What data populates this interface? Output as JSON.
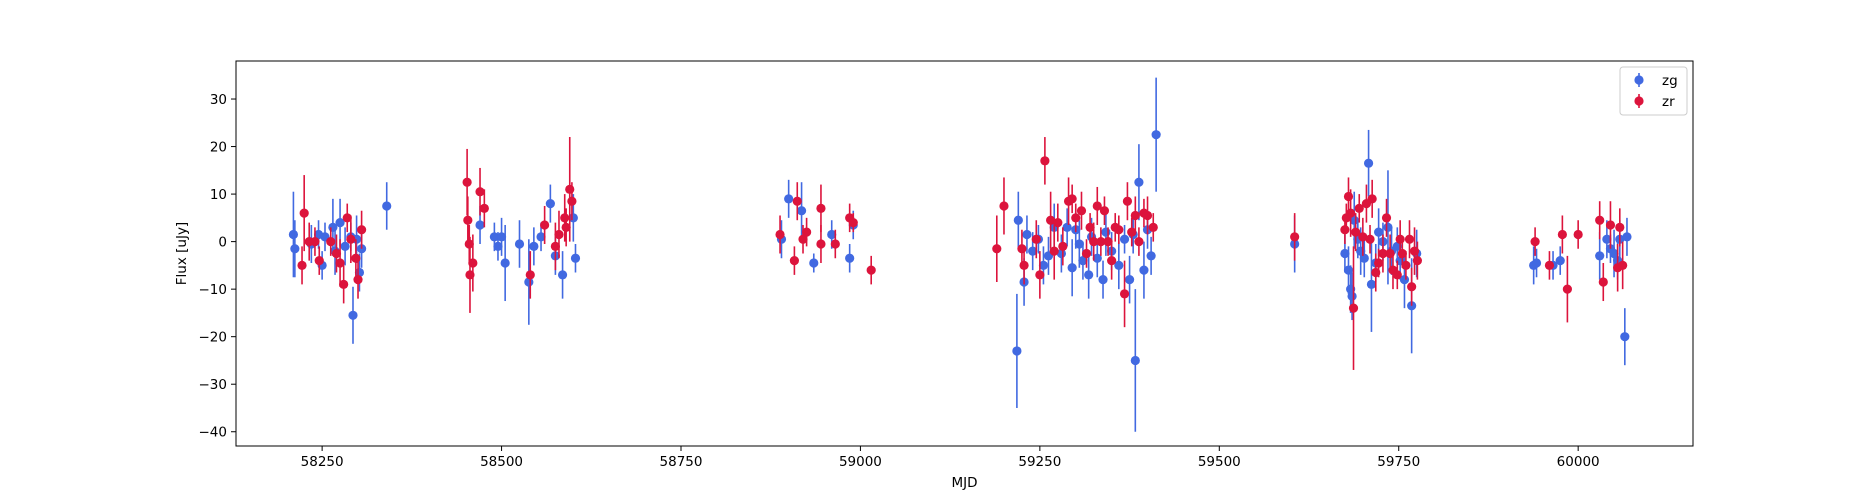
{
  "chart_data": {
    "type": "scatter",
    "title": "",
    "xlabel": "MJD",
    "ylabel": "Flux [uJy]",
    "xlim": [
      58130,
      60160
    ],
    "ylim": [
      -43,
      38
    ],
    "xticks": [
      58250,
      58500,
      58750,
      59000,
      59250,
      59500,
      59750,
      60000
    ],
    "yticks": [
      -40,
      -30,
      -20,
      -10,
      0,
      10,
      20,
      30
    ],
    "grid": false,
    "legend": "top-right",
    "series": [
      {
        "name": "zg",
        "color": "#4169e1",
        "points": [
          [
            58210,
            1.5,
            9
          ],
          [
            58212,
            -1.5,
            6
          ],
          [
            58235,
            -0.5,
            4
          ],
          [
            58245,
            1.5,
            3
          ],
          [
            58250,
            -5,
            3
          ],
          [
            58254,
            1,
            3
          ],
          [
            58265,
            3,
            6
          ],
          [
            58268,
            -2,
            5
          ],
          [
            58275,
            4,
            5
          ],
          [
            58282,
            -1,
            4
          ],
          [
            58290,
            1,
            3
          ],
          [
            58293,
            -15.5,
            6
          ],
          [
            58298,
            0.5,
            5
          ],
          [
            58302,
            -6.5,
            4
          ],
          [
            58305,
            -1.5,
            4
          ],
          [
            58340,
            7.5,
            5
          ],
          [
            58470,
            3.5,
            4
          ],
          [
            58490,
            1,
            3
          ],
          [
            58495,
            -1,
            3
          ],
          [
            58500,
            1,
            4
          ],
          [
            58505,
            -4.5,
            8
          ],
          [
            58525,
            -0.5,
            5
          ],
          [
            58538,
            -8.5,
            9
          ],
          [
            58545,
            -1,
            4
          ],
          [
            58555,
            1,
            3
          ],
          [
            58568,
            8,
            4
          ],
          [
            58575,
            -3,
            4
          ],
          [
            58585,
            -7,
            5
          ],
          [
            58600,
            5,
            5
          ],
          [
            58603,
            -3.5,
            3
          ],
          [
            58890,
            0.5,
            4
          ],
          [
            58900,
            9,
            4
          ],
          [
            58918,
            6.5,
            6
          ],
          [
            58935,
            -4.5,
            2
          ],
          [
            58960,
            1.5,
            3
          ],
          [
            58985,
            -3.5,
            3
          ],
          [
            58990,
            3.5,
            3
          ],
          [
            59218,
            -23,
            12
          ],
          [
            59220,
            4.5,
            6
          ],
          [
            59228,
            -8.5,
            5
          ],
          [
            59232,
            1.5,
            4
          ],
          [
            59240,
            -2,
            4
          ],
          [
            59248,
            0.5,
            3
          ],
          [
            59255,
            -5,
            4
          ],
          [
            59262,
            -3,
            4
          ],
          [
            59270,
            3,
            5
          ],
          [
            59280,
            -2.5,
            4
          ],
          [
            59288,
            3,
            4
          ],
          [
            59295,
            -5.5,
            6
          ],
          [
            59300,
            2.5,
            4
          ],
          [
            59305,
            -0.5,
            5
          ],
          [
            59310,
            -4,
            4
          ],
          [
            59318,
            -7,
            5
          ],
          [
            59322,
            1,
            4
          ],
          [
            59330,
            -3.5,
            4
          ],
          [
            59338,
            -8,
            4
          ],
          [
            59342,
            2,
            5
          ],
          [
            59350,
            -2,
            4
          ],
          [
            59360,
            -5,
            5
          ],
          [
            59368,
            0.5,
            3
          ],
          [
            59375,
            -8,
            5
          ],
          [
            59380,
            1.5,
            4
          ],
          [
            59383,
            -25,
            15
          ],
          [
            59388,
            12.5,
            8
          ],
          [
            59395,
            -6,
            6
          ],
          [
            59400,
            2.5,
            4
          ],
          [
            59405,
            -3,
            4
          ],
          [
            59412,
            22.5,
            12
          ],
          [
            59605,
            -0.5,
            6
          ],
          [
            59675,
            -2.5,
            4
          ],
          [
            59680,
            -6,
            5
          ],
          [
            59683,
            -10,
            5
          ],
          [
            59685,
            -11.5,
            5
          ],
          [
            59688,
            4.5,
            6
          ],
          [
            59693,
            0.5,
            4
          ],
          [
            59697,
            -2,
            5
          ],
          [
            59702,
            -3.5,
            4
          ],
          [
            59708,
            16.5,
            7
          ],
          [
            59712,
            -9,
            10
          ],
          [
            59718,
            -4.5,
            4
          ],
          [
            59722,
            2,
            5
          ],
          [
            59728,
            0,
            4
          ],
          [
            59735,
            3,
            12
          ],
          [
            59740,
            -2,
            5
          ],
          [
            59748,
            -1,
            4
          ],
          [
            59752,
            -4,
            4
          ],
          [
            59758,
            -8,
            6
          ],
          [
            59768,
            -13.5,
            10
          ],
          [
            59775,
            -2.5,
            5
          ],
          [
            59938,
            -5,
            4
          ],
          [
            59942,
            -4.5,
            3
          ],
          [
            59965,
            -5,
            3
          ],
          [
            59975,
            -4,
            3
          ],
          [
            60030,
            -3,
            5
          ],
          [
            60040,
            0.5,
            4
          ],
          [
            60045,
            -1.5,
            3
          ],
          [
            60050,
            -2.5,
            5
          ],
          [
            60055,
            -4,
            4
          ],
          [
            60058,
            0.5,
            4
          ],
          [
            60065,
            -20,
            6
          ],
          [
            60068,
            1,
            4
          ]
        ]
      },
      {
        "name": "zr",
        "color": "#dc143c",
        "points": [
          [
            58222,
            -5,
            4
          ],
          [
            58225,
            6,
            8
          ],
          [
            58232,
            0,
            4
          ],
          [
            58240,
            0,
            3
          ],
          [
            58246,
            -4,
            3
          ],
          [
            58262,
            0,
            3
          ],
          [
            58270,
            -2.5,
            4
          ],
          [
            58275,
            -4.5,
            5
          ],
          [
            58280,
            -9,
            4
          ],
          [
            58285,
            5,
            3
          ],
          [
            58290,
            0.5,
            5
          ],
          [
            58297,
            -3.5,
            4
          ],
          [
            58300,
            -8,
            4
          ],
          [
            58305,
            2.5,
            4
          ],
          [
            58452,
            12.5,
            7
          ],
          [
            58453,
            4.5,
            5
          ],
          [
            58455,
            -0.5,
            4
          ],
          [
            58456,
            -7,
            8
          ],
          [
            58460,
            -4.5,
            6
          ],
          [
            58470,
            10.5,
            5
          ],
          [
            58476,
            7,
            4
          ],
          [
            58540,
            -7,
            5
          ],
          [
            58560,
            3.5,
            4
          ],
          [
            58575,
            -1,
            5
          ],
          [
            58580,
            1.5,
            5
          ],
          [
            58588,
            5,
            5
          ],
          [
            58590,
            3,
            4
          ],
          [
            58595,
            11,
            11
          ],
          [
            58598,
            8.5,
            4
          ],
          [
            58888,
            1.5,
            4
          ],
          [
            58908,
            -4,
            3
          ],
          [
            58912,
            8.5,
            4
          ],
          [
            58920,
            0.5,
            3
          ],
          [
            58925,
            2,
            3
          ],
          [
            58945,
            7,
            5
          ],
          [
            58945,
            -0.5,
            4
          ],
          [
            58965,
            -0.5,
            3
          ],
          [
            58985,
            5,
            3
          ],
          [
            58990,
            4,
            2
          ],
          [
            59015,
            -6,
            3
          ],
          [
            59190,
            -1.5,
            7
          ],
          [
            59200,
            7.5,
            6
          ],
          [
            59225,
            -1.5,
            4
          ],
          [
            59228,
            -5,
            4
          ],
          [
            59245,
            0.5,
            4
          ],
          [
            59250,
            -7,
            5
          ],
          [
            59257,
            17,
            5
          ],
          [
            59265,
            4.5,
            6
          ],
          [
            59270,
            -2,
            6
          ],
          [
            59275,
            4,
            4
          ],
          [
            59282,
            -1,
            4
          ],
          [
            59290,
            8.5,
            5
          ],
          [
            59295,
            9,
            3
          ],
          [
            59300,
            5,
            3
          ],
          [
            59308,
            6.5,
            4
          ],
          [
            59315,
            -2.5,
            3
          ],
          [
            59320,
            3,
            3
          ],
          [
            59325,
            0,
            4
          ],
          [
            59330,
            7.5,
            4
          ],
          [
            59335,
            0,
            3
          ],
          [
            59340,
            6.5,
            3
          ],
          [
            59345,
            0,
            3
          ],
          [
            59350,
            -4,
            4
          ],
          [
            59355,
            3,
            3
          ],
          [
            59360,
            2.5,
            3
          ],
          [
            59368,
            -11,
            7
          ],
          [
            59372,
            8.5,
            4
          ],
          [
            59378,
            2,
            3
          ],
          [
            59383,
            5.5,
            4
          ],
          [
            59388,
            0,
            3
          ],
          [
            59395,
            6,
            3
          ],
          [
            59400,
            5.5,
            4
          ],
          [
            59408,
            3,
            3
          ],
          [
            59605,
            1,
            5
          ],
          [
            59675,
            2.5,
            3
          ],
          [
            59677,
            5,
            3
          ],
          [
            59680,
            9.5,
            4
          ],
          [
            59683,
            6,
            5
          ],
          [
            59687,
            -14,
            13
          ],
          [
            59690,
            2,
            4
          ],
          [
            59695,
            7,
            3
          ],
          [
            59700,
            1,
            4
          ],
          [
            59705,
            8,
            4
          ],
          [
            59710,
            0.5,
            3
          ],
          [
            59713,
            9,
            4
          ],
          [
            59718,
            -6.5,
            4
          ],
          [
            59722,
            -4.5,
            3
          ],
          [
            59728,
            -2.5,
            4
          ],
          [
            59733,
            5,
            4
          ],
          [
            59738,
            -2.5,
            4
          ],
          [
            59742,
            -6,
            4
          ],
          [
            59748,
            -7,
            3
          ],
          [
            59752,
            0.5,
            4
          ],
          [
            59755,
            -2.5,
            3
          ],
          [
            59760,
            -5,
            3
          ],
          [
            59765,
            0.5,
            4
          ],
          [
            59768,
            -9.5,
            4
          ],
          [
            59772,
            -2,
            5
          ],
          [
            59776,
            -4,
            4
          ],
          [
            59940,
            0,
            3
          ],
          [
            59960,
            -5,
            3
          ],
          [
            59978,
            1.5,
            4
          ],
          [
            59985,
            -10,
            7
          ],
          [
            60000,
            1.5,
            3
          ],
          [
            60030,
            4.5,
            4
          ],
          [
            60035,
            -8.5,
            4
          ],
          [
            60045,
            3.5,
            5
          ],
          [
            60055,
            -5.5,
            5
          ],
          [
            60058,
            3,
            4
          ],
          [
            60062,
            -5,
            5
          ]
        ]
      }
    ]
  }
}
